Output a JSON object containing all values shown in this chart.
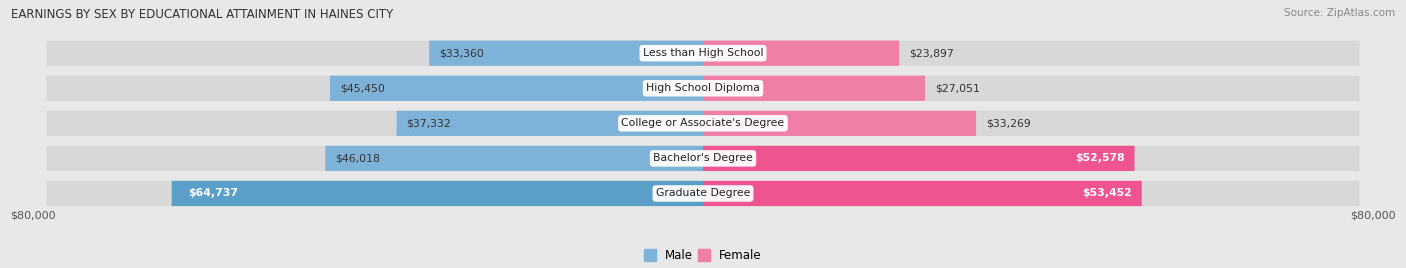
{
  "title": "EARNINGS BY SEX BY EDUCATIONAL ATTAINMENT IN HAINES CITY",
  "source": "Source: ZipAtlas.com",
  "categories": [
    "Less than High School",
    "High School Diploma",
    "College or Associate's Degree",
    "Bachelor's Degree",
    "Graduate Degree"
  ],
  "male_values": [
    33360,
    45450,
    37332,
    46018,
    64737
  ],
  "female_values": [
    23897,
    27051,
    33269,
    52578,
    53452
  ],
  "male_color": "#7fb2d8",
  "female_color": "#f07fa8",
  "male_color_large": "#5a9fc8",
  "female_color_large": "#ee5590",
  "max_value": 80000,
  "bg_color": "#e8e8e8",
  "bar_bg_color": "#d8d8d8",
  "bar_height": 0.72,
  "xlabel_left": "$80,000",
  "xlabel_right": "$80,000",
  "male_inside_threshold": 55000,
  "female_inside_threshold": 40000
}
